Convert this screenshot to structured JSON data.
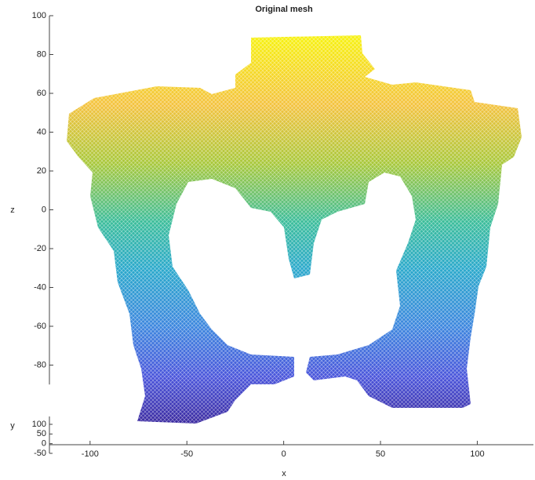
{
  "chart_data": {
    "type": "mesh",
    "title": "Original mesh",
    "xlabel": "x",
    "ylabel": "y",
    "zlabel": "z",
    "xlim": [
      -121,
      129
    ],
    "xticks": [
      -100,
      -50,
      0,
      50,
      100
    ],
    "ylim": [
      -50,
      100
    ],
    "yticks": [
      -50,
      0,
      50,
      100
    ],
    "zlim": [
      -90,
      100
    ],
    "zticks": [
      -80,
      -60,
      -40,
      -20,
      0,
      20,
      40,
      60,
      80,
      100
    ]
  }
}
